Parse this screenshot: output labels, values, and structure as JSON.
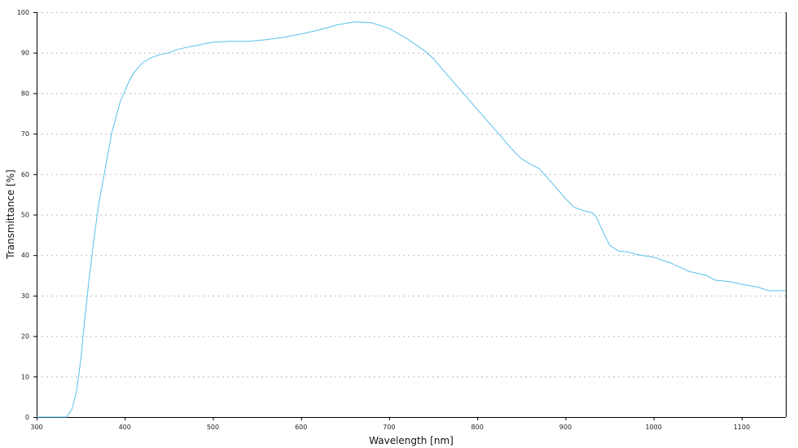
{
  "chart_data": {
    "type": "line",
    "title": "",
    "xlabel": "Wavelength [nm]",
    "ylabel": "Transmittance [%]",
    "xlim": [
      300,
      1150
    ],
    "ylim": [
      0,
      100
    ],
    "xticks": [
      300,
      400,
      500,
      600,
      700,
      800,
      900,
      1000,
      1100
    ],
    "yticks": [
      0,
      10,
      20,
      30,
      40,
      50,
      60,
      70,
      80,
      90,
      100
    ],
    "grid": "horizontal dotted",
    "line_color": "#5bc0eb",
    "series": [
      {
        "x": [
          300,
          334,
          340,
          345,
          350,
          355,
          360,
          365,
          370,
          375,
          380,
          385,
          390,
          395,
          400,
          405,
          410,
          420,
          430,
          440,
          450,
          460,
          470,
          480,
          490,
          500,
          520,
          540,
          560,
          580,
          600,
          620,
          640,
          660,
          680,
          700,
          720,
          740,
          750,
          760,
          780,
          800,
          820,
          840,
          850,
          860,
          870,
          880,
          900,
          910,
          920,
          930,
          935,
          940,
          950,
          960,
          970,
          980,
          1000,
          1020,
          1040,
          1060,
          1070,
          1080,
          1090,
          1100,
          1120,
          1130,
          1150
        ],
        "y": [
          0,
          0,
          2,
          6,
          14,
          25,
          35,
          44,
          52,
          58,
          64,
          70,
          74,
          78,
          80.5,
          83,
          85,
          87.5,
          88.8,
          89.5,
          90,
          90.8,
          91.3,
          91.7,
          92.2,
          92.6,
          92.8,
          92.8,
          93.2,
          93.8,
          94.6,
          95.6,
          96.8,
          97.6,
          97.4,
          96,
          93.5,
          90.5,
          88.6,
          86,
          81,
          76,
          71,
          66,
          63.8,
          62.5,
          61.4,
          59,
          54,
          51.8,
          51,
          50.5,
          49.5,
          47,
          42.5,
          41,
          40.8,
          40.2,
          39.5,
          38,
          36,
          35,
          33.8,
          33.6,
          33.3,
          32.8,
          32,
          31.2,
          31.2
        ]
      }
    ]
  }
}
